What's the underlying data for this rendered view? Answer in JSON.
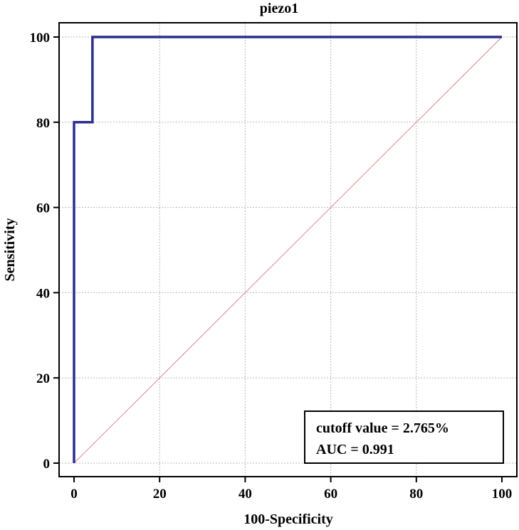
{
  "chart_data": {
    "type": "line",
    "title": "piezo1",
    "xlabel": "100-Specificity",
    "ylabel": "Sensitivity",
    "xlim": [
      0,
      100
    ],
    "ylim": [
      0,
      100
    ],
    "xticks": [
      0,
      20,
      40,
      60,
      80,
      100
    ],
    "yticks": [
      0,
      20,
      40,
      60,
      80,
      100
    ],
    "grid": true,
    "series": [
      {
        "color": "#2b2f8f",
        "x": [
          0,
          0,
          4.3,
          4.3,
          100
        ],
        "y": [
          0,
          80,
          80,
          100,
          100
        ]
      },
      {
        "color": "#d98a8a",
        "x": [
          0,
          100
        ],
        "y": [
          0,
          100
        ]
      }
    ],
    "annotations": [
      "cutoff value = 2.765%",
      "AUC = 0.991"
    ],
    "annotation_placement": "bottom-right"
  }
}
